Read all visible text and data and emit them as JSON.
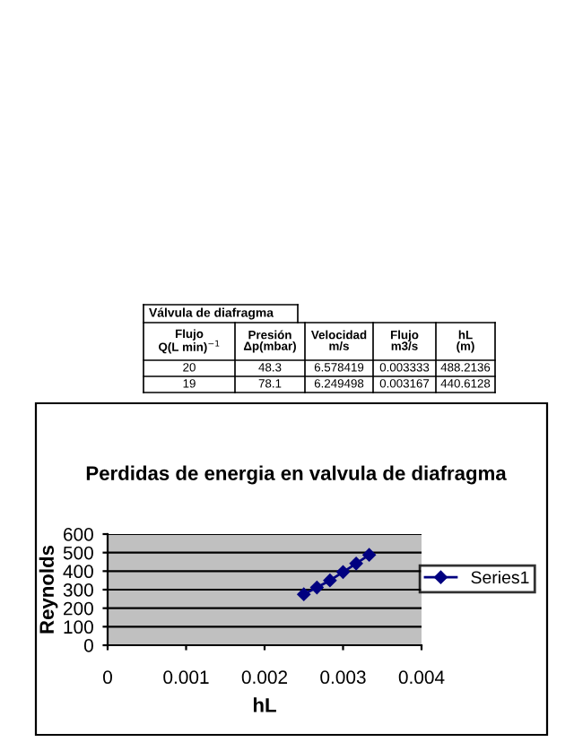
{
  "chart_data": {
    "type": "line",
    "title": "Perdidas de energia en valvula de diafragma",
    "xlabel": "hL",
    "ylabel": "Reynolds",
    "series": [
      {
        "name": "Series1",
        "color": "#000080",
        "x": [
          0.0025,
          0.002667,
          0.002833,
          0.003,
          0.003167,
          0.003333
        ],
        "values": [
          275,
          312,
          350,
          395,
          441,
          488
        ]
      }
    ],
    "xlim": [
      0,
      0.004
    ],
    "xticks": [
      0,
      0.001,
      0.002,
      0.003,
      0.004
    ],
    "ylim": [
      0,
      600
    ],
    "yticks": [
      0,
      100,
      200,
      300,
      400,
      500,
      600
    ],
    "grid": "y",
    "legend": "right",
    "marker": "diamond",
    "line_style": "solid",
    "annotations": [
      "Válvula de diafragma",
      "Flujo\nQ(L min)$^{−1}$",
      "Presión\nΔp(mbar)",
      "Velocidad\nm/s",
      "Flujo\nm3/s",
      "hL\n(m)",
      "20",
      "48.3",
      "6.578419",
      "0.003333",
      "488.2136",
      "19",
      "78.1",
      "6.249498",
      "0.003167",
      "440.6128"
    ]
  }
}
